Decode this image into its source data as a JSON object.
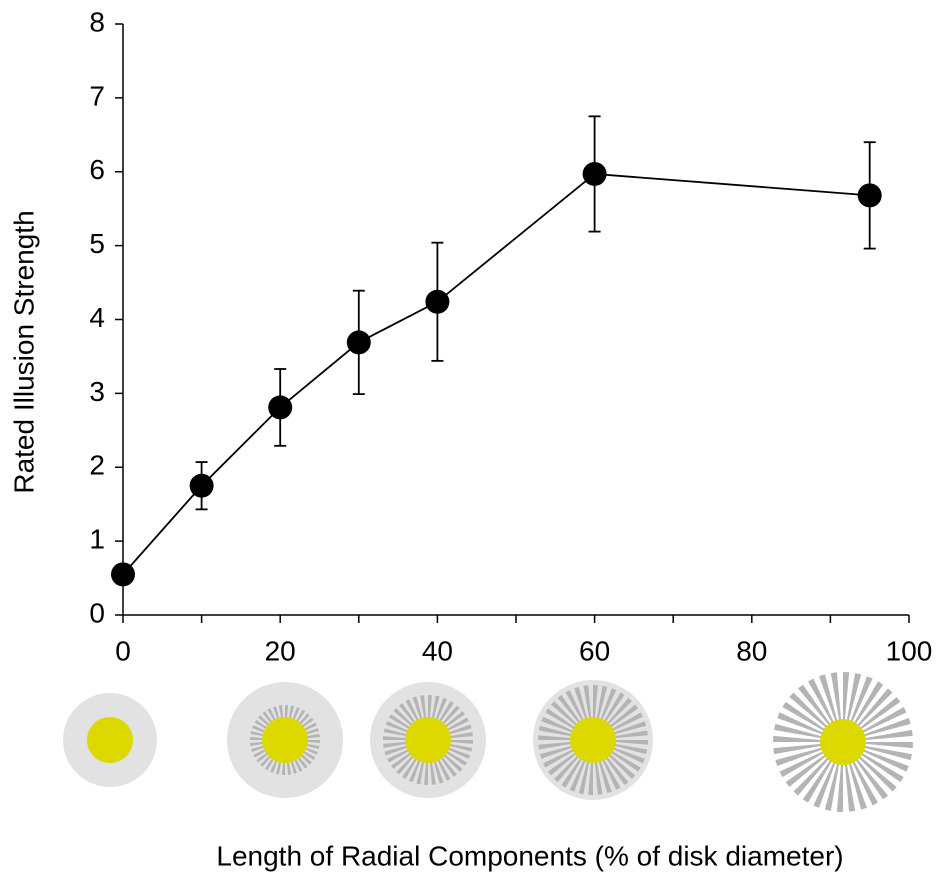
{
  "chart_data": {
    "type": "line",
    "x_label": "Length of Radial Components (% of disk diameter)",
    "y_label": "Rated Illusion Strength",
    "x": [
      0,
      10,
      20,
      30,
      40,
      60,
      95
    ],
    "series": [
      {
        "color": "#000000",
        "values": [
          0.55,
          1.75,
          2.81,
          3.69,
          4.24,
          5.97,
          5.68
        ],
        "errors": [
          null,
          0.32,
          0.52,
          0.7,
          0.8,
          0.78,
          0.72
        ]
      }
    ],
    "xlim": [
      0,
      100
    ],
    "xticks": [
      0,
      20,
      40,
      60,
      80,
      100
    ],
    "xminorticks": [
      10,
      30,
      50,
      70,
      90
    ],
    "ylim": [
      0,
      8
    ],
    "yticks": [
      0,
      1,
      2,
      3,
      4,
      5,
      6,
      7,
      8
    ]
  }
}
